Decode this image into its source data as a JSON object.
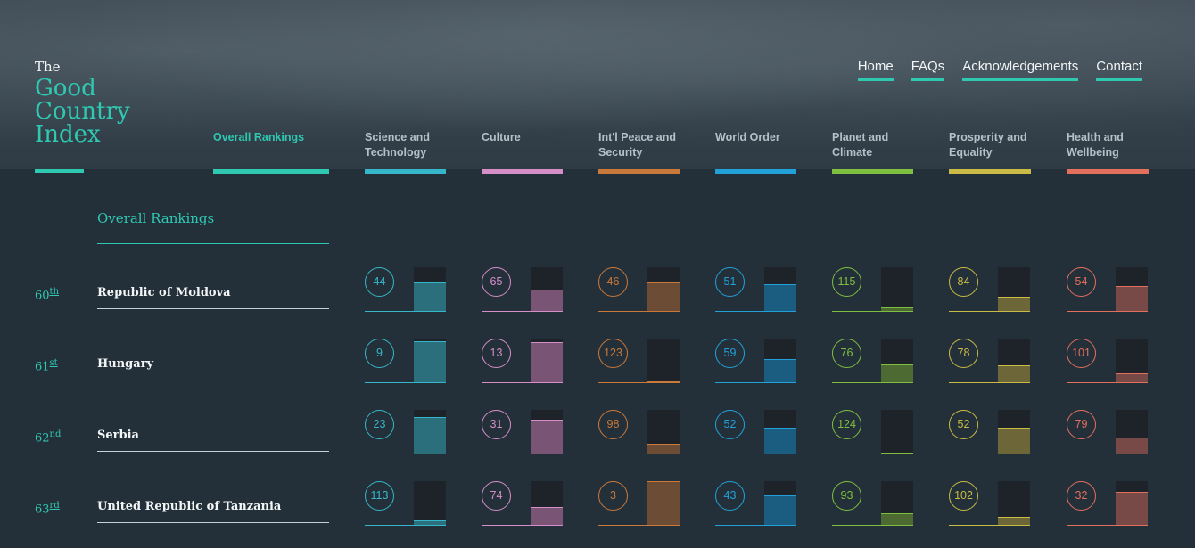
{
  "logo": {
    "the": "The",
    "name": "Good Country Index"
  },
  "nav": [
    "Home",
    "FAQs",
    "Acknowledgements",
    "Contact"
  ],
  "categories": [
    {
      "label": "Overall Rankings",
      "color": "#2fc9b2",
      "active": true
    },
    {
      "label": "Science and Technology",
      "color": "#35b7c9",
      "fill": "#2b6f7c"
    },
    {
      "label": "Culture",
      "color": "#d68ec9",
      "fill": "#7a5474"
    },
    {
      "label": "Int'l Peace and Security",
      "color": "#c9793a",
      "fill": "#6c4c34"
    },
    {
      "label": "World Order",
      "color": "#22a1d8",
      "fill": "#1a5d80"
    },
    {
      "label": "Planet and Climate",
      "color": "#7fbf3f",
      "fill": "#4d6a33"
    },
    {
      "label": "Prosperity and Equality",
      "color": "#c9bb45",
      "fill": "#6c6638"
    },
    {
      "label": "Health and Wellbeing",
      "color": "#e36f5d",
      "fill": "#774947"
    }
  ],
  "section_title": "Overall Rankings",
  "rows": [
    {
      "rank": "60",
      "suffix": "th",
      "country": "Republic of Moldova",
      "scores": [
        44,
        65,
        46,
        51,
        115,
        84,
        54
      ]
    },
    {
      "rank": "61",
      "suffix": "st",
      "country": "Hungary",
      "scores": [
        9,
        13,
        123,
        59,
        76,
        78,
        101
      ]
    },
    {
      "rank": "62",
      "suffix": "nd",
      "country": "Serbia",
      "scores": [
        23,
        31,
        98,
        52,
        124,
        52,
        79
      ]
    },
    {
      "rank": "63",
      "suffix": "rd",
      "country": "United Republic of Tanzania",
      "scores": [
        113,
        74,
        3,
        43,
        93,
        102,
        32
      ]
    }
  ],
  "max_rank": 125
}
